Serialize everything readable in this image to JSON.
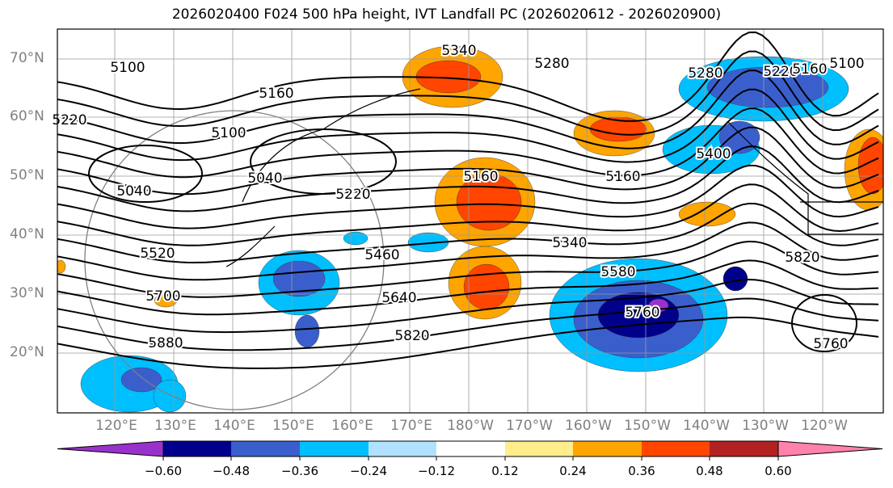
{
  "title": "2026020400 F024 500 hPa height, IVT Landfall PC (2026020612 - 2026020900)",
  "lat_labels": [
    "70°N",
    "60°N",
    "50°N",
    "40°N",
    "30°N",
    "20°N"
  ],
  "lon_labels": [
    "120°E",
    "130°E",
    "140°E",
    "150°E",
    "160°E",
    "170°E",
    "180°W",
    "170°W",
    "160°W",
    "150°W",
    "140°W",
    "130°W",
    "120°W"
  ],
  "colorbar": {
    "ticks": [
      "−0.60",
      "−0.48",
      "−0.36",
      "−0.24",
      "−0.12",
      "0.12",
      "0.24",
      "0.36",
      "0.48",
      "0.60"
    ],
    "colors": [
      "#9932CC",
      "#00008B",
      "#3A5FCD",
      "#00BFFF",
      "#B0E2FF",
      "#FFFFFF",
      "#FFEC8B",
      "#FFA500",
      "#FF4500",
      "#B22222",
      "#FF82AB"
    ]
  },
  "contour_labels": [
    "5340",
    "5280",
    "5100",
    "5160",
    "5220",
    "5100",
    "5040",
    "5040",
    "5160",
    "5220",
    "5160",
    "5400",
    "5280",
    "5220",
    "5160",
    "5100",
    "5460",
    "5340",
    "5520",
    "5580",
    "5700",
    "5640",
    "5760",
    "5820",
    "5880",
    "5820",
    "5760"
  ]
}
